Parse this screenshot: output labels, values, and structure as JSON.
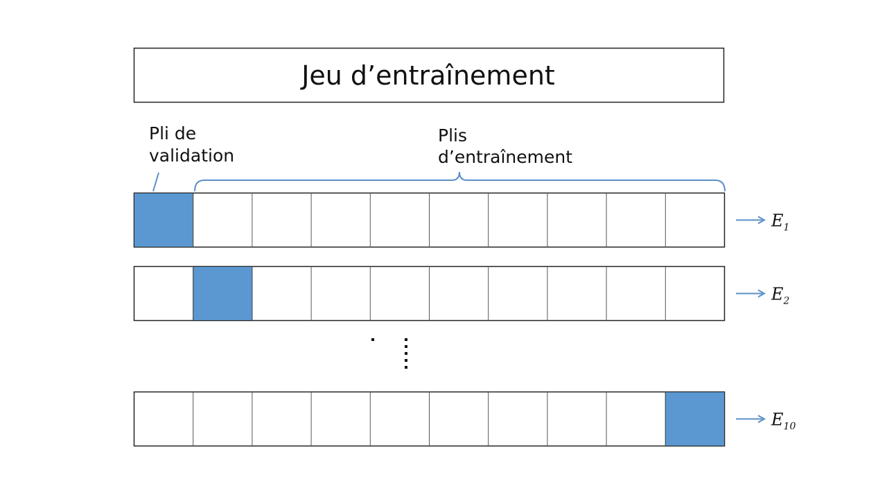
{
  "title": "Jeu d’entraînement",
  "validation_label": {
    "lines": [
      "Pli de",
      "validation"
    ]
  },
  "training_label": {
    "lines": [
      "Plis",
      "d’entraînement"
    ]
  },
  "rows": [
    {
      "letter": "E",
      "subscript": "1"
    },
    {
      "letter": "E",
      "subscript": "2"
    },
    {
      "letter": "E",
      "subscript": "10"
    }
  ]
}
